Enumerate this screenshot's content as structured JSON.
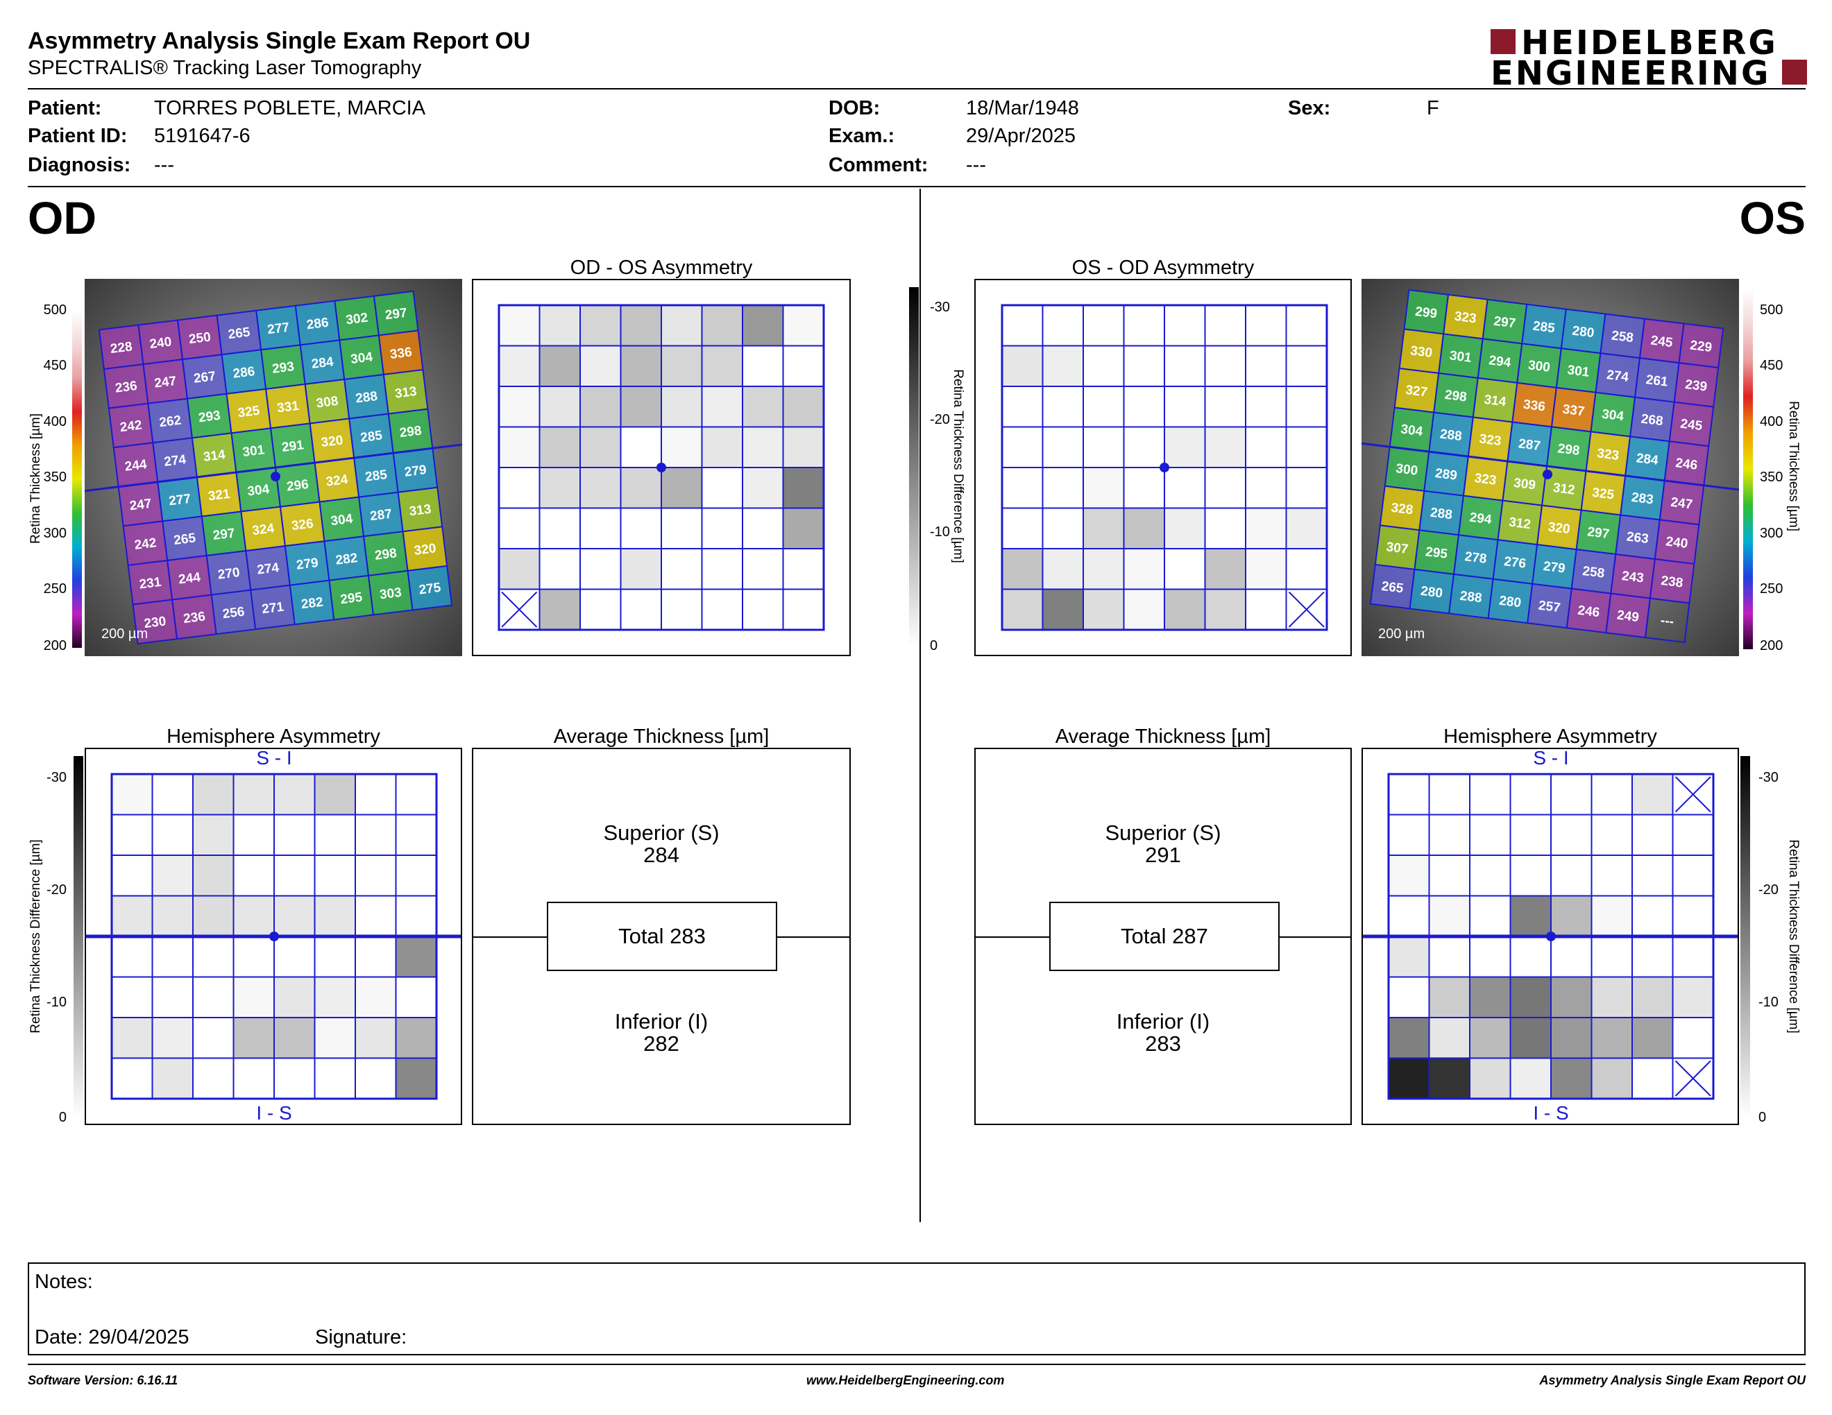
{
  "header": {
    "title": "Asymmetry Analysis Single Exam Report OU",
    "subtitle": "SPECTRALIS® Tracking Laser Tomography",
    "logo_line1": "HEIDELBERG",
    "logo_line2": "ENGINEERING",
    "logo_color": "#8b1a2b"
  },
  "patient": {
    "patient_label": "Patient:",
    "patient_value": "TORRES POBLETE, MARCIA",
    "id_label": "Patient ID:",
    "id_value": "5191647-6",
    "diag_label": "Diagnosis:",
    "diag_value": "---",
    "dob_label": "DOB:",
    "dob_value": "18/Mar/1948",
    "exam_label": "Exam.:",
    "exam_value": "29/Apr/2025",
    "comment_label": "Comment:",
    "comment_value": "---",
    "sex_label": "Sex:",
    "sex_value": "F"
  },
  "od": {
    "eye_label": "OD",
    "asym_title": "OD - OS Asymmetry",
    "hemi_title": "Hemisphere Asymmetry",
    "avg_title": "Average Thickness [µm]",
    "scale_bar": "200 µm",
    "hemi_top": "S - I",
    "hemi_bottom": "I - S",
    "superior_label": "Superior (S)",
    "superior_value": "284",
    "total_label": "Total 283",
    "inferior_label": "Inferior (I)",
    "inferior_value": "282",
    "thickness_grid": [
      [
        "228",
        "240",
        "250",
        "265",
        "277",
        "286",
        "302",
        "297"
      ],
      [
        "236",
        "247",
        "267",
        "286",
        "293",
        "284",
        "304",
        "336"
      ],
      [
        "242",
        "262",
        "293",
        "325",
        "331",
        "308",
        "288",
        "313"
      ],
      [
        "244",
        "274",
        "314",
        "301",
        "291",
        "320",
        "285",
        "298"
      ],
      [
        "247",
        "277",
        "321",
        "304",
        "296",
        "324",
        "285",
        "279"
      ],
      [
        "242",
        "265",
        "297",
        "324",
        "326",
        "304",
        "287",
        "313"
      ],
      [
        "231",
        "244",
        "270",
        "274",
        "279",
        "282",
        "298",
        "320"
      ],
      [
        "230",
        "236",
        "256",
        "271",
        "282",
        "295",
        "303",
        "275"
      ]
    ],
    "asym_grid": [
      [
        1,
        3,
        5,
        7,
        3,
        6,
        12,
        1
      ],
      [
        2,
        9,
        2,
        8,
        5,
        5,
        0,
        0
      ],
      [
        1,
        3,
        6,
        8,
        3,
        2,
        5,
        6
      ],
      [
        1,
        6,
        5,
        0,
        1,
        3,
        2,
        3
      ],
      [
        0,
        4,
        4,
        5,
        9,
        0,
        2,
        15
      ],
      [
        0,
        0,
        0,
        0,
        0,
        0,
        0,
        10
      ],
      [
        4,
        0,
        0,
        3,
        0,
        0,
        0,
        0
      ],
      [
        "x",
        8,
        0,
        0,
        0,
        0,
        0,
        0
      ]
    ],
    "hemi_grid": [
      [
        1,
        0,
        4,
        3,
        3,
        6,
        0,
        0
      ],
      [
        0,
        0,
        3,
        0,
        0,
        0,
        0,
        0
      ],
      [
        0,
        2,
        4,
        0,
        0,
        0,
        0,
        0
      ],
      [
        3,
        3,
        4,
        3,
        3,
        3,
        0,
        0
      ],
      [
        0,
        0,
        0,
        0,
        0,
        0,
        0,
        13
      ],
      [
        0,
        0,
        0,
        1,
        3,
        2,
        1,
        0
      ],
      [
        3,
        2,
        0,
        7,
        7,
        1,
        3,
        9
      ],
      [
        0,
        3,
        0,
        0,
        0,
        0,
        0,
        14
      ]
    ]
  },
  "os": {
    "eye_label": "OS",
    "asym_title": "OS - OD Asymmetry",
    "hemi_title": "Hemisphere Asymmetry",
    "avg_title": "Average Thickness [µm]",
    "scale_bar": "200 µm",
    "hemi_top": "S - I",
    "hemi_bottom": "I - S",
    "superior_label": "Superior (S)",
    "superior_value": "291",
    "total_label": "Total 287",
    "inferior_label": "Inferior (I)",
    "inferior_value": "283",
    "thickness_grid": [
      [
        "299",
        "323",
        "297",
        "285",
        "280",
        "258",
        "245",
        "229"
      ],
      [
        "330",
        "301",
        "294",
        "300",
        "301",
        "274",
        "261",
        "239"
      ],
      [
        "327",
        "298",
        "314",
        "336",
        "337",
        "304",
        "268",
        "245"
      ],
      [
        "304",
        "288",
        "323",
        "287",
        "298",
        "323",
        "284",
        "246"
      ],
      [
        "300",
        "289",
        "323",
        "309",
        "312",
        "325",
        "283",
        "247"
      ],
      [
        "328",
        "288",
        "294",
        "312",
        "320",
        "297",
        "263",
        "240"
      ],
      [
        "307",
        "295",
        "278",
        "276",
        "279",
        "258",
        "243",
        "238"
      ],
      [
        "265",
        "280",
        "288",
        "280",
        "257",
        "246",
        "249",
        "---"
      ]
    ],
    "asym_grid": [
      [
        0,
        0,
        0,
        0,
        0,
        0,
        0,
        0
      ],
      [
        3,
        2,
        0,
        0,
        0,
        0,
        0,
        0
      ],
      [
        0,
        0,
        0,
        0,
        0,
        0,
        0,
        0
      ],
      [
        0,
        0,
        0,
        0,
        2,
        2,
        0,
        0
      ],
      [
        0,
        0,
        1,
        0,
        0,
        0,
        0,
        0
      ],
      [
        0,
        0,
        5,
        7,
        2,
        0,
        1,
        2
      ],
      [
        7,
        2,
        2,
        1,
        0,
        7,
        1,
        0
      ],
      [
        5,
        15,
        4,
        1,
        7,
        5,
        0,
        "x"
      ]
    ],
    "hemi_grid": [
      [
        0,
        0,
        0,
        0,
        0,
        0,
        3,
        "x"
      ],
      [
        0,
        0,
        0,
        0,
        0,
        0,
        0,
        0
      ],
      [
        1,
        0,
        0,
        0,
        0,
        0,
        0,
        0
      ],
      [
        0,
        1,
        0,
        15,
        8,
        1,
        0,
        0
      ],
      [
        3,
        0,
        0,
        0,
        0,
        0,
        0,
        0
      ],
      [
        0,
        6,
        13,
        16,
        11,
        4,
        5,
        3
      ],
      [
        15,
        3,
        8,
        16,
        12,
        9,
        11,
        0
      ],
      [
        26,
        24,
        4,
        2,
        14,
        6,
        0,
        "x"
      ]
    ]
  },
  "colorbars": {
    "thickness_ticks": [
      "500",
      "450",
      "400",
      "350",
      "300",
      "250",
      "200"
    ],
    "thickness_label": "Retina Thickness [µm]",
    "diff_ticks": [
      "-30",
      "-20",
      "-10",
      "0"
    ],
    "diff_label": "Retina Thickness Difference [µm]"
  },
  "notes": {
    "notes_label": "Notes:",
    "date_label": "Date: 29/04/2025",
    "signature_label": "Signature:"
  },
  "footer": {
    "software": "Software Version: 6.16.11",
    "website": "www.HeidelbergEngineering.com",
    "report_name": "Asymmetry Analysis Single Exam Report OU"
  }
}
